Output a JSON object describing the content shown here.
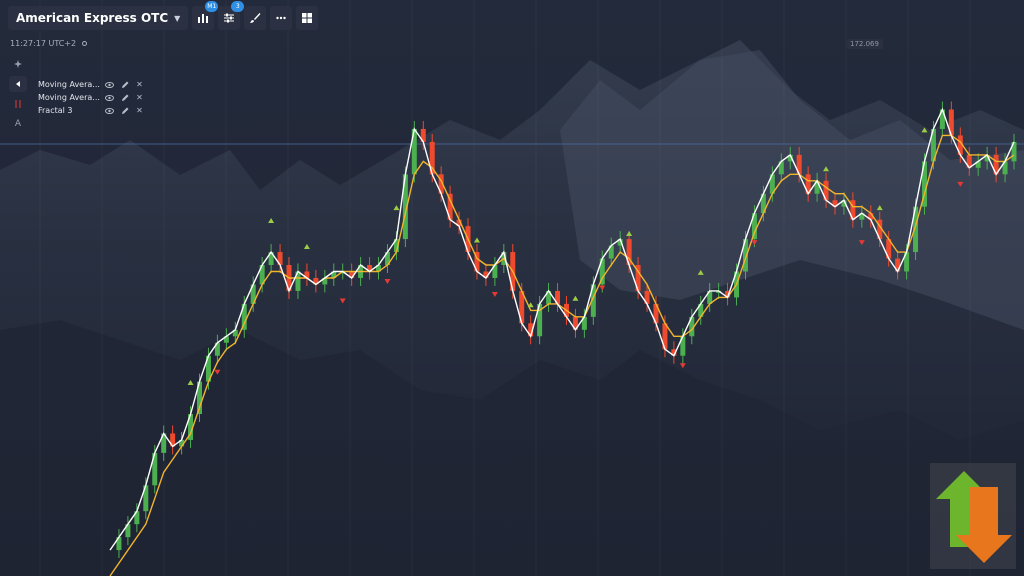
{
  "toolbar": {
    "asset_label": "American Express OTC",
    "chart_type_icon": "candles-chart-icon",
    "chart_type_badge": "M1",
    "indicators_icon": "sliders-icon",
    "indicators_badge": "3",
    "drawing_icon": "brush-icon",
    "more_icon": "more-dots-icon",
    "layout_icon": "grid-layout-icon"
  },
  "clock": {
    "time": "11:27:17 UTC+2"
  },
  "indicators": [
    {
      "name": "Moving Avera..."
    },
    {
      "name": "Moving Avera..."
    },
    {
      "name": "Fractal 3"
    }
  ],
  "left_tools": {
    "a_label": "A"
  },
  "price_label": "172.069",
  "colors": {
    "bull": "#4caf50",
    "bear": "#f04a2e",
    "ma_fast": "#ffffff",
    "ma_slow": "#f2b52c",
    "fractal_up": "#9ccc45",
    "fractal_down": "#e53935",
    "price_line": "#4a6a9e"
  },
  "chart_data": {
    "type": "candlestick",
    "series_white": [
      12,
      14,
      16,
      18,
      22,
      27,
      30,
      28,
      29,
      33,
      38,
      42,
      44,
      45,
      46,
      50,
      53,
      56,
      58,
      56,
      52,
      55,
      54,
      53,
      54,
      55,
      55,
      54,
      56,
      55,
      56,
      58,
      60,
      70,
      77,
      75,
      70,
      67,
      63,
      62,
      58,
      55,
      54,
      56,
      58,
      52,
      47,
      45,
      50,
      52,
      50,
      48,
      46,
      48,
      53,
      57,
      59,
      60,
      56,
      52,
      50,
      47,
      43,
      42,
      45,
      48,
      50,
      52,
      52,
      51,
      55,
      60,
      64,
      67,
      70,
      72,
      73,
      70,
      67,
      69,
      66,
      65,
      66,
      63,
      64,
      63,
      60,
      57,
      55,
      58,
      65,
      72,
      77,
      80,
      76,
      73,
      71,
      72,
      73,
      70,
      72,
      75
    ],
    "series_yellow": [
      8,
      10,
      12,
      14,
      16,
      20,
      24,
      26,
      28,
      30,
      34,
      38,
      41,
      43,
      44,
      47,
      50,
      53,
      55,
      55,
      54,
      54,
      54,
      53,
      54,
      54,
      55,
      55,
      55,
      55,
      55,
      56,
      58,
      64,
      70,
      72,
      71,
      69,
      66,
      63,
      60,
      57,
      56,
      56,
      57,
      55,
      52,
      49,
      49,
      50,
      50,
      49,
      48,
      48,
      51,
      54,
      56,
      58,
      57,
      55,
      53,
      50,
      47,
      45,
      45,
      46,
      48,
      50,
      51,
      51,
      53,
      57,
      61,
      64,
      67,
      69,
      70,
      70,
      69,
      69,
      68,
      67,
      67,
      65,
      65,
      64,
      62,
      60,
      58,
      58,
      62,
      67,
      72,
      76,
      76,
      75,
      73,
      73,
      73,
      72,
      72,
      73
    ],
    "fractals_up": [
      9,
      18,
      22,
      32,
      41,
      47,
      52,
      58,
      66,
      80,
      86,
      91
    ],
    "fractals_down": [
      12,
      26,
      31,
      43,
      55,
      64,
      72,
      84,
      95
    ],
    "price_level": 172.069
  }
}
